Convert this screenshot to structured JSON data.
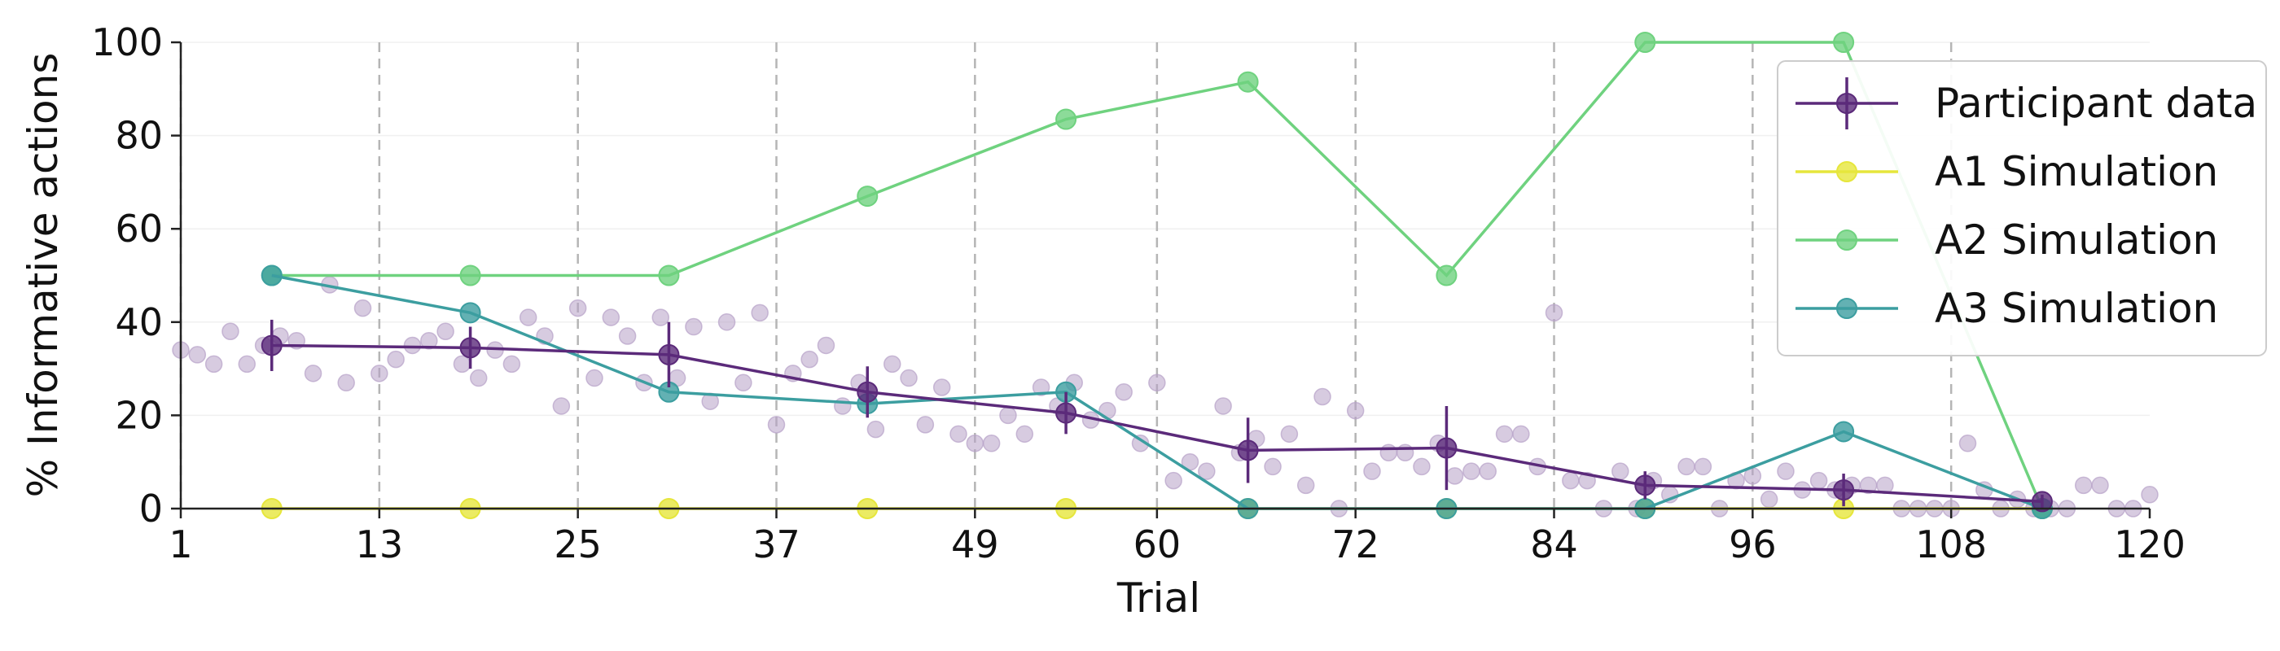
{
  "chart_data": {
    "type": "line",
    "xlabel": "Trial",
    "ylabel": "% Informative actions",
    "xlim": [
      1,
      120
    ],
    "ylim": [
      0,
      100
    ],
    "xticks": [
      1,
      13,
      25,
      37,
      49,
      60,
      72,
      84,
      96,
      108,
      120
    ],
    "yticks": [
      0,
      20,
      40,
      60,
      80,
      100
    ],
    "block_boundaries": [
      1,
      13,
      25,
      37,
      49,
      60,
      72,
      84,
      96,
      108
    ],
    "grid": "dashed vertical lines at block boundaries; faint horizontal lines",
    "legend_position": "top-right",
    "trial_points": {
      "color": "#b7a1c7",
      "x": [
        1,
        2,
        3,
        4,
        5,
        6,
        7,
        8,
        9,
        10,
        11,
        12,
        13,
        14,
        15,
        16,
        17,
        18,
        19,
        20,
        21,
        22,
        23,
        24,
        25,
        26,
        27,
        28,
        29,
        30,
        31,
        32,
        33,
        34,
        35,
        36,
        37,
        38,
        39,
        40,
        41,
        42,
        43,
        44,
        45,
        46,
        47,
        48,
        49,
        50,
        51,
        52,
        53,
        54,
        55,
        56,
        57,
        58,
        59,
        60,
        61,
        62,
        63,
        64,
        65,
        66,
        67,
        68,
        69,
        70,
        71,
        72,
        73,
        74,
        75,
        76,
        77,
        78,
        79,
        80,
        81,
        82,
        83,
        84,
        85,
        86,
        87,
        88,
        89,
        90,
        91,
        92,
        93,
        94,
        95,
        96,
        97,
        98,
        99,
        100,
        101,
        102,
        103,
        104,
        105,
        106,
        107,
        108,
        109,
        110,
        111,
        112,
        113,
        114,
        115,
        116,
        117,
        118,
        119,
        120
      ],
      "y": [
        34,
        33,
        31,
        38,
        31,
        35,
        37,
        36,
        29,
        48,
        27,
        43,
        29,
        32,
        35,
        36,
        38,
        31,
        28,
        34,
        31,
        41,
        37,
        22,
        43,
        28,
        41,
        37,
        27,
        41,
        28,
        39,
        23,
        40,
        27,
        42,
        18,
        29,
        32,
        35,
        22,
        27,
        17,
        31,
        28,
        18,
        26,
        16,
        14,
        14,
        20,
        16,
        26,
        22,
        27,
        19,
        21,
        25,
        14,
        27,
        6,
        10,
        8,
        22,
        12,
        15,
        9,
        16,
        5,
        24,
        0,
        21,
        8,
        12,
        12,
        9,
        14,
        7,
        8,
        8,
        16,
        16,
        9,
        42,
        6,
        6,
        0,
        8,
        0,
        6,
        3,
        9,
        9,
        0,
        6,
        7,
        2,
        8,
        4,
        6,
        4,
        5,
        5,
        5,
        0,
        0,
        0,
        0,
        14,
        4,
        0,
        2,
        0,
        0,
        0,
        5,
        5,
        0,
        0,
        3
      ]
    },
    "series": [
      {
        "name": "Participant data",
        "color": "#5b2a7a",
        "x": [
          6.5,
          18.5,
          30.5,
          42.5,
          54.5,
          65.5,
          77.5,
          89.5,
          101.5,
          113.5
        ],
        "values": [
          35,
          34.5,
          33,
          25,
          20.5,
          12.5,
          13,
          5,
          4,
          1.5
        ],
        "error": [
          5.5,
          4.5,
          7,
          5.5,
          4.5,
          7,
          9,
          3,
          3.5,
          1.5
        ]
      },
      {
        "name": "A1 Simulation",
        "color": "#e6e63c",
        "x": [
          6.5,
          18.5,
          30.5,
          42.5,
          54.5,
          65.5,
          77.5,
          89.5,
          101.5,
          113.5
        ],
        "values": [
          0,
          0,
          0,
          0,
          0,
          0,
          0,
          0,
          0,
          0
        ]
      },
      {
        "name": "A2 Simulation",
        "color": "#6fd27f",
        "x": [
          6.5,
          18.5,
          30.5,
          42.5,
          54.5,
          65.5,
          77.5,
          89.5,
          101.5,
          113.5
        ],
        "values": [
          50,
          50,
          50,
          67,
          83.5,
          91.5,
          50,
          100,
          100,
          0
        ]
      },
      {
        "name": "A3 Simulation",
        "color": "#3c9ea0",
        "x": [
          6.5,
          18.5,
          30.5,
          42.5,
          54.5,
          65.5,
          77.5,
          89.5,
          101.5,
          113.5
        ],
        "values": [
          50,
          42,
          25,
          22.5,
          25,
          0,
          0,
          0,
          16.5,
          0
        ]
      }
    ]
  }
}
